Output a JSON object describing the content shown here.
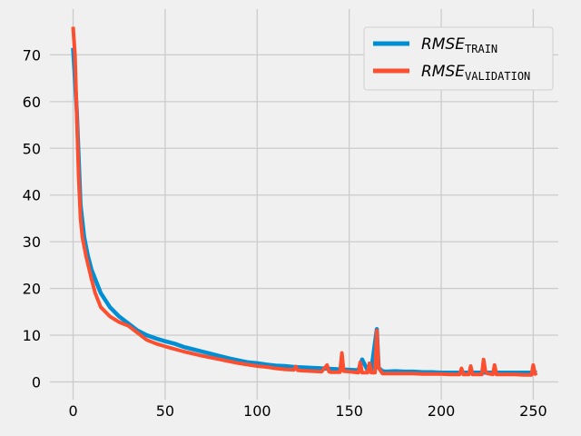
{
  "chart_data": {
    "type": "line",
    "title": "",
    "xlabel": "",
    "ylabel": "",
    "xlim": [
      -12.6,
      263.6
    ],
    "ylim": [
      -3.8,
      79.8
    ],
    "xticks": [
      0,
      50,
      100,
      150,
      200,
      250
    ],
    "yticks": [
      0,
      10,
      20,
      30,
      40,
      50,
      60,
      70
    ],
    "grid": true,
    "legend_position": "top-right",
    "series": [
      {
        "name": "RMSE_TRAIN",
        "legend_main": "RMSE",
        "legend_sub": "TRAIN",
        "color": "#008fd5",
        "x": [
          0,
          2,
          4,
          6,
          8,
          10,
          12,
          15,
          20,
          25,
          30,
          35,
          40,
          45,
          50,
          55,
          60,
          65,
          70,
          75,
          80,
          85,
          90,
          95,
          100,
          105,
          110,
          115,
          120,
          125,
          130,
          135,
          140,
          145,
          150,
          155,
          157,
          160,
          162,
          165,
          166,
          168,
          170,
          175,
          180,
          185,
          190,
          195,
          200,
          205,
          210,
          215,
          220,
          225,
          230,
          235,
          240,
          245,
          250,
          252
        ],
        "y": [
          71.5,
          58,
          38,
          31,
          27,
          24,
          22,
          19,
          16,
          14,
          12.5,
          11,
          10,
          9.3,
          8.7,
          8.2,
          7.5,
          7,
          6.5,
          6,
          5.5,
          5,
          4.6,
          4.2,
          4,
          3.7,
          3.5,
          3.4,
          3.2,
          3.1,
          3.0,
          2.9,
          2.8,
          2.7,
          2.6,
          2.5,
          4.8,
          2.5,
          2.6,
          11.3,
          3.0,
          2.3,
          2.2,
          2.3,
          2.2,
          2.2,
          2.1,
          2.1,
          2.0,
          2.0,
          2.0,
          2.0,
          2.0,
          2.0,
          2.0,
          2.0,
          2.0,
          2.0,
          2.0,
          2.0
        ]
      },
      {
        "name": "RMSE_VALIDATION",
        "legend_main": "RMSE",
        "legend_sub": "VALIDATION",
        "color": "#fc4f30",
        "x": [
          0,
          1,
          2,
          3,
          4,
          5,
          7,
          10,
          12,
          15,
          20,
          25,
          30,
          35,
          40,
          45,
          50,
          60,
          70,
          80,
          90,
          100,
          105,
          110,
          115,
          120,
          121,
          122,
          125,
          130,
          135,
          138,
          139,
          140,
          145,
          146,
          147,
          150,
          155,
          156,
          157,
          160,
          161,
          162,
          164,
          165,
          166,
          168,
          170,
          175,
          180,
          185,
          190,
          195,
          200,
          205,
          210,
          211,
          212,
          215,
          216,
          217,
          220,
          222,
          223,
          224,
          225,
          228,
          229,
          230,
          235,
          240,
          245,
          249,
          250,
          251,
          252
        ],
        "y": [
          76,
          70,
          57,
          44,
          35,
          31,
          27,
          22,
          19,
          16,
          14,
          12.8,
          12,
          10.5,
          9,
          8.2,
          7.6,
          6.5,
          5.6,
          4.8,
          4.0,
          3.4,
          3.2,
          2.9,
          2.7,
          2.6,
          3.3,
          2.5,
          2.4,
          2.3,
          2.2,
          3.6,
          2.2,
          2.1,
          2.1,
          6.2,
          2.3,
          2.2,
          2.0,
          4.2,
          2.0,
          2.0,
          4.0,
          2.0,
          2.0,
          11.0,
          3.0,
          1.8,
          1.8,
          1.8,
          1.8,
          1.8,
          1.7,
          1.7,
          1.7,
          1.6,
          1.6,
          2.9,
          1.6,
          1.6,
          3.4,
          1.6,
          1.6,
          1.6,
          4.8,
          2.3,
          1.8,
          1.6,
          3.6,
          1.6,
          1.6,
          1.6,
          1.5,
          1.5,
          3.6,
          1.7,
          1.9
        ]
      }
    ]
  }
}
